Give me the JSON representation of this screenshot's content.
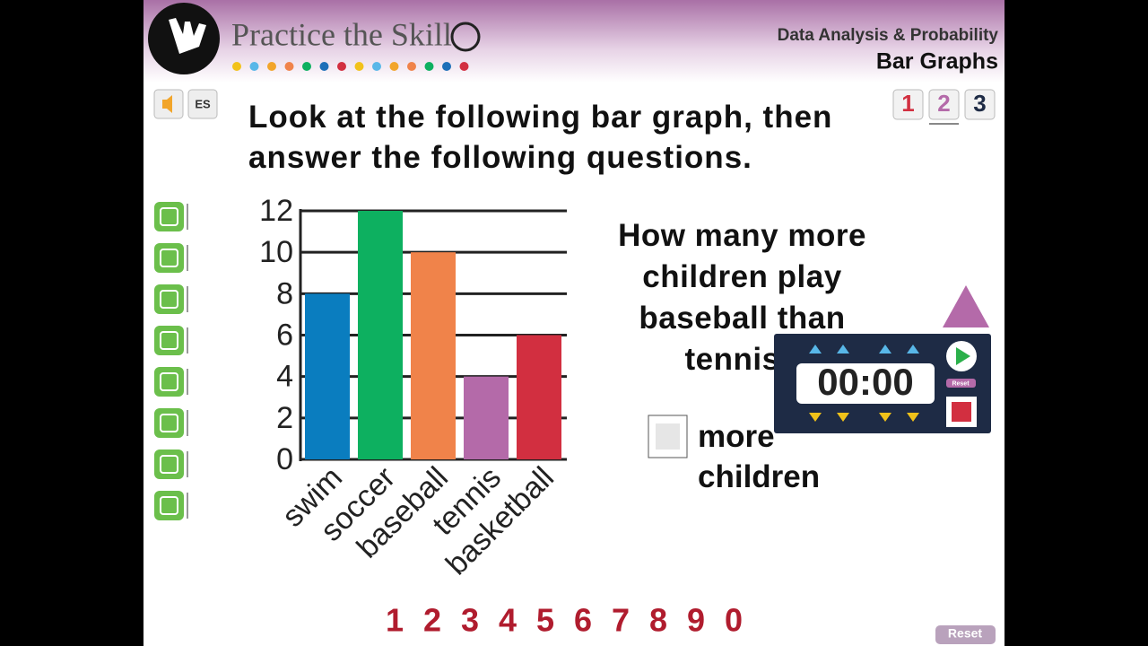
{
  "header": {
    "title": "Practice the Skill",
    "subject": "Data Analysis & Probability",
    "topic": "Bar Graphs"
  },
  "language_button": "ES",
  "pages": [
    "1",
    "2",
    "3"
  ],
  "instruction": "Look at the following bar graph, then answer the following questions.",
  "chart_data": {
    "type": "bar",
    "categories": [
      "swim",
      "soccer",
      "baseball",
      "tennis",
      "basketball"
    ],
    "values": [
      8,
      12,
      10,
      4,
      6
    ],
    "colors": [
      "#0a7dbf",
      "#0db060",
      "#f0834a",
      "#b46aa9",
      "#d22f40"
    ],
    "ylim": [
      0,
      12
    ],
    "yticks": [
      0,
      2,
      4,
      6,
      8,
      10,
      12
    ],
    "grid": true
  },
  "question": "How many more children play baseball than tennis?",
  "answer_label": "more children",
  "keypad": [
    "1",
    "2",
    "3",
    "4",
    "5",
    "6",
    "7",
    "8",
    "9",
    "0"
  ],
  "timer": {
    "display": "00:00",
    "reset": "Reset"
  },
  "reset_button": "Reset"
}
